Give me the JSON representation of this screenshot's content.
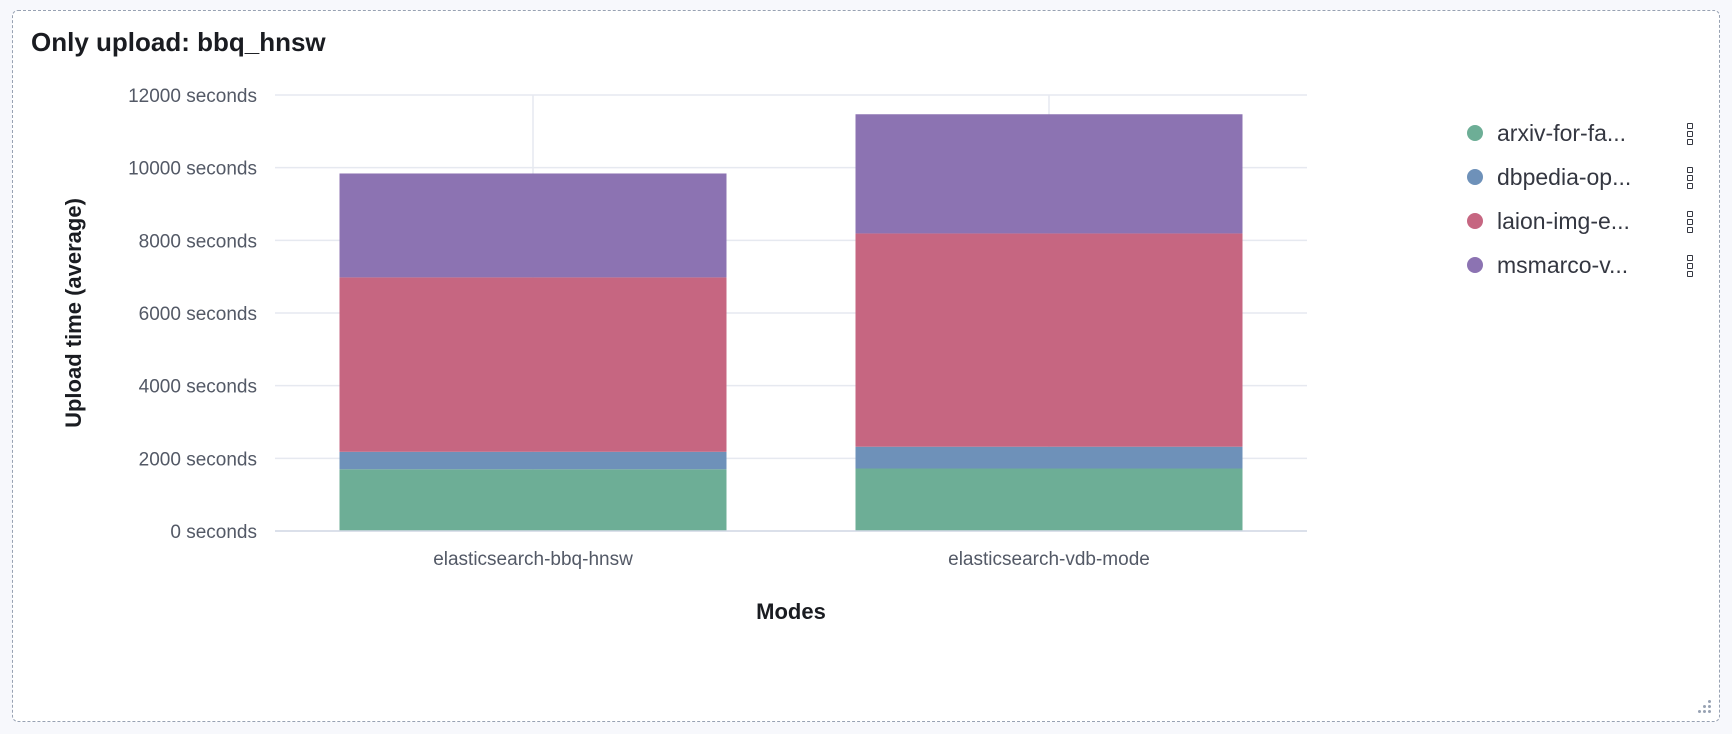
{
  "panel": {
    "title": "Only upload: bbq_hnsw"
  },
  "chart_data": {
    "type": "bar",
    "stacked": true,
    "title": "Only upload: bbq_hnsw",
    "xlabel": "Modes",
    "ylabel": "Upload time (average)",
    "ylim": [
      0,
      12000
    ],
    "yticks": [
      0,
      2000,
      4000,
      6000,
      8000,
      10000,
      12000
    ],
    "ytick_suffix": " seconds",
    "grid": true,
    "legend_position": "right",
    "categories": [
      "elasticsearch-bbq-hnsw",
      "elasticsearch-vdb-mode"
    ],
    "series": [
      {
        "name": "arxiv-for-fa...",
        "color": "#6dae96",
        "values": [
          1700,
          1720
        ]
      },
      {
        "name": "dbpedia-op...",
        "color": "#6e91b9",
        "values": [
          480,
          600
        ]
      },
      {
        "name": "laion-img-e...",
        "color": "#c66681",
        "values": [
          4800,
          5870
        ]
      },
      {
        "name": "msmarco-v...",
        "color": "#8c73b2",
        "values": [
          2860,
          3280
        ]
      }
    ]
  }
}
